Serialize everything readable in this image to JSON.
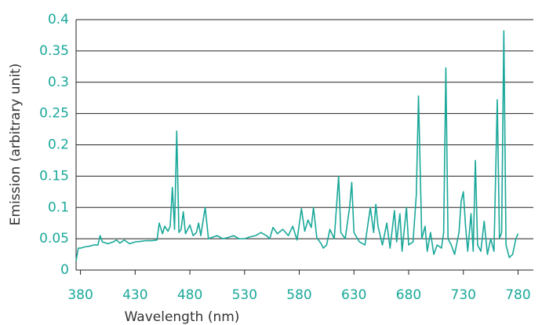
{
  "chart_data": {
    "type": "line",
    "x_label": "Wavelength (nm)",
    "y_label": "Emission (arbitrary unit)",
    "x": [
      376,
      378,
      380,
      384,
      388,
      392,
      396,
      398,
      400,
      405,
      410,
      413,
      416,
      420,
      425,
      430,
      436,
      440,
      445,
      450,
      452,
      455,
      457,
      460,
      462,
      464,
      466,
      468,
      470,
      472,
      474,
      476,
      480,
      483,
      486,
      488,
      490,
      494,
      497,
      500,
      505,
      510,
      515,
      520,
      525,
      530,
      535,
      540,
      545,
      550,
      553,
      556,
      560,
      565,
      570,
      574,
      578,
      582,
      585,
      588,
      591,
      593,
      596,
      600,
      602,
      605,
      608,
      612,
      616,
      618,
      622,
      626,
      628,
      630,
      635,
      640,
      645,
      648,
      650,
      652,
      656,
      660,
      663,
      667,
      669,
      672,
      674,
      678,
      680,
      684,
      687,
      689,
      692,
      695,
      697,
      700,
      703,
      706,
      710,
      712,
      714,
      716,
      719,
      722,
      726,
      728,
      730,
      732,
      734,
      737,
      739,
      741,
      743,
      746,
      749,
      752,
      755,
      758,
      761,
      763,
      765,
      767,
      769,
      772,
      775,
      778,
      780
    ],
    "series": [
      {
        "name": "Emission",
        "color": "#1aa89a",
        "values": [
          0.015,
          0.035,
          0.035,
          0.037,
          0.038,
          0.04,
          0.04,
          0.055,
          0.045,
          0.042,
          0.045,
          0.048,
          0.043,
          0.048,
          0.042,
          0.045,
          0.046,
          0.047,
          0.047,
          0.048,
          0.075,
          0.058,
          0.07,
          0.062,
          0.07,
          0.132,
          0.065,
          0.222,
          0.06,
          0.065,
          0.093,
          0.058,
          0.072,
          0.055,
          0.06,
          0.075,
          0.055,
          0.1,
          0.05,
          0.052,
          0.055,
          0.05,
          0.052,
          0.055,
          0.05,
          0.05,
          0.053,
          0.055,
          0.06,
          0.055,
          0.05,
          0.068,
          0.058,
          0.065,
          0.055,
          0.07,
          0.048,
          0.098,
          0.062,
          0.08,
          0.068,
          0.1,
          0.052,
          0.042,
          0.035,
          0.04,
          0.065,
          0.05,
          0.15,
          0.06,
          0.05,
          0.1,
          0.14,
          0.06,
          0.045,
          0.04,
          0.1,
          0.06,
          0.105,
          0.07,
          0.04,
          0.075,
          0.035,
          0.095,
          0.045,
          0.09,
          0.03,
          0.1,
          0.04,
          0.045,
          0.12,
          0.278,
          0.05,
          0.07,
          0.03,
          0.06,
          0.025,
          0.04,
          0.035,
          0.06,
          0.323,
          0.05,
          0.04,
          0.025,
          0.06,
          0.11,
          0.125,
          0.07,
          0.03,
          0.09,
          0.03,
          0.175,
          0.04,
          0.03,
          0.078,
          0.025,
          0.05,
          0.03,
          0.272,
          0.05,
          0.06,
          0.382,
          0.04,
          0.02,
          0.025,
          0.05,
          0.058
        ]
      }
    ],
    "xlim": [
      376,
      794
    ],
    "ylim": [
      0,
      0.4
    ],
    "xticks": [
      380,
      430,
      480,
      530,
      580,
      630,
      680,
      730,
      780
    ],
    "yticks": [
      0,
      0.05,
      0.1,
      0.15,
      0.2,
      0.25,
      0.3,
      0.35,
      0.4
    ],
    "grid": true
  }
}
